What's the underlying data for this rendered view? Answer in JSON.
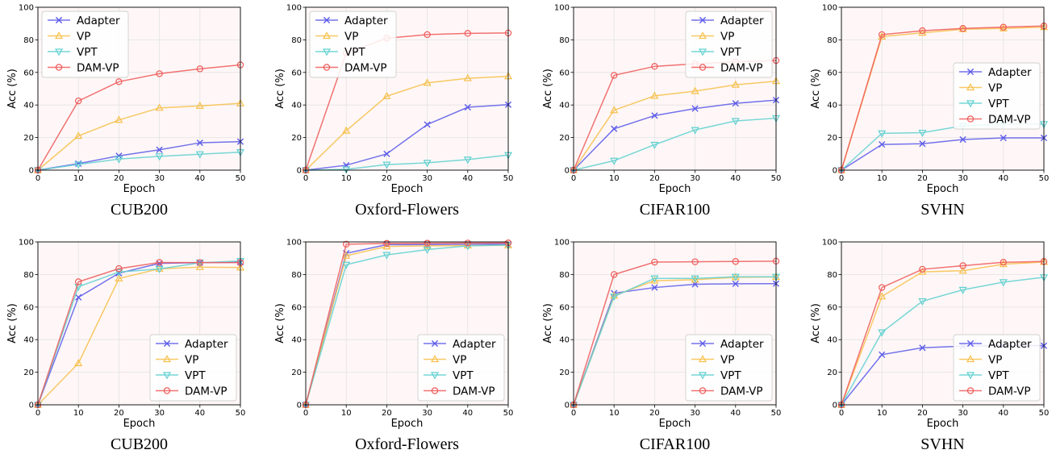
{
  "figure": {
    "series_colors": {
      "Adapter": "#5b5bea",
      "VP": "#f7c04a",
      "VPT": "#5fd0d0",
      "DAM-VP": "#ef5a5a"
    },
    "series_markers": {
      "Adapter": "x-marker",
      "VP": "triangle-up-marker",
      "VPT": "triangle-down-marker",
      "DAM-VP": "circle-marker"
    },
    "plot_background": "#fff7f7"
  },
  "chart_data": [
    {
      "type": "line",
      "caption": "CUB200",
      "xlabel": "Epoch",
      "ylabel": "Acc (%)",
      "xlim": [
        0,
        50
      ],
      "ylim": [
        0,
        100
      ],
      "grid": true,
      "legend": "top-left",
      "x": [
        0,
        10,
        20,
        30,
        40,
        50
      ],
      "xticks": [
        "0",
        "10",
        "20",
        "30",
        "40",
        "50"
      ],
      "yticks": [
        "0",
        "20",
        "40",
        "60",
        "80",
        "100"
      ],
      "series": [
        {
          "name": "Adapter",
          "values": [
            0,
            4,
            8.8,
            12.5,
            16.8,
            17.5
          ]
        },
        {
          "name": "VP",
          "values": [
            0,
            21,
            30.8,
            38.2,
            39.4,
            41
          ]
        },
        {
          "name": "VPT",
          "values": [
            0,
            3.5,
            6.8,
            8.5,
            9.8,
            11
          ]
        },
        {
          "name": "DAM-VP",
          "values": [
            0,
            42.5,
            54.3,
            59.2,
            62.2,
            64.6
          ]
        }
      ]
    },
    {
      "type": "line",
      "caption": "Oxford-Flowers",
      "xlabel": "Epoch",
      "ylabel": "Acc (%)",
      "xlim": [
        0,
        50
      ],
      "ylim": [
        0,
        100
      ],
      "grid": true,
      "legend": "top-left",
      "x": [
        0,
        10,
        20,
        30,
        40,
        50
      ],
      "xticks": [
        "0",
        "10",
        "20",
        "30",
        "40",
        "50"
      ],
      "yticks": [
        "0",
        "20",
        "40",
        "60",
        "80",
        "100"
      ],
      "series": [
        {
          "name": "Adapter",
          "values": [
            0,
            3,
            10,
            28,
            38.6,
            40.2
          ]
        },
        {
          "name": "VP",
          "values": [
            0,
            24.2,
            45.4,
            53.6,
            56.4,
            57.6
          ]
        },
        {
          "name": "VPT",
          "values": [
            0,
            0.5,
            3.4,
            4.5,
            6.5,
            9.3
          ]
        },
        {
          "name": "DAM-VP",
          "values": [
            0,
            72,
            81,
            83.2,
            84,
            84.2
          ]
        }
      ]
    },
    {
      "type": "line",
      "caption": "CIFAR100",
      "xlabel": "Epoch",
      "ylabel": "Acc (%)",
      "xlim": [
        0,
        50
      ],
      "ylim": [
        0,
        100
      ],
      "grid": true,
      "legend": "top-right",
      "x": [
        0,
        10,
        20,
        30,
        40,
        50
      ],
      "xticks": [
        "0",
        "10",
        "20",
        "30",
        "40",
        "50"
      ],
      "yticks": [
        "0",
        "20",
        "40",
        "60",
        "80",
        "100"
      ],
      "series": [
        {
          "name": "Adapter",
          "values": [
            0,
            25.4,
            33.5,
            37.8,
            41,
            43
          ]
        },
        {
          "name": "VP",
          "values": [
            0,
            36.8,
            45.6,
            48.5,
            52.4,
            54.6
          ]
        },
        {
          "name": "VPT",
          "values": [
            0,
            5.8,
            15.6,
            24.7,
            30.2,
            31.9
          ]
        },
        {
          "name": "DAM-VP",
          "values": [
            0,
            58.2,
            63.7,
            65.3,
            66.5,
            67.3
          ]
        }
      ]
    },
    {
      "type": "line",
      "caption": "SVHN",
      "xlabel": "Epoch",
      "ylabel": "Acc (%)",
      "xlim": [
        0,
        50
      ],
      "ylim": [
        0,
        100
      ],
      "grid": true,
      "legend": "center-right",
      "x": [
        0,
        10,
        20,
        30,
        40,
        50
      ],
      "xticks": [
        "0",
        "10",
        "20",
        "30",
        "40",
        "50"
      ],
      "yticks": [
        "0",
        "20",
        "40",
        "60",
        "80",
        "100"
      ],
      "series": [
        {
          "name": "Adapter",
          "values": [
            0,
            15.8,
            16.2,
            18.8,
            19.8,
            19.8
          ]
        },
        {
          "name": "VP",
          "values": [
            0,
            82,
            84.3,
            86.5,
            87,
            87.8
          ]
        },
        {
          "name": "VPT",
          "values": [
            0,
            22.6,
            23,
            27.2,
            28.2,
            28.3
          ]
        },
        {
          "name": "DAM-VP",
          "values": [
            0,
            83.2,
            85.6,
            87,
            87.8,
            88.5
          ]
        }
      ]
    },
    {
      "type": "line",
      "caption": "CUB200",
      "xlabel": "Epoch",
      "ylabel": "Acc (%)",
      "xlim": [
        0,
        50
      ],
      "ylim": [
        0,
        100
      ],
      "grid": true,
      "legend": "bottom-right",
      "x": [
        0,
        10,
        20,
        30,
        40,
        50
      ],
      "xticks": [
        "0",
        "10",
        "20",
        "30",
        "40",
        "50"
      ],
      "yticks": [
        "0",
        "20",
        "40",
        "60",
        "80",
        "100"
      ],
      "series": [
        {
          "name": "Adapter",
          "values": [
            0,
            66,
            80.8,
            86.8,
            87.3,
            87.5
          ]
        },
        {
          "name": "VP",
          "values": [
            0,
            25.5,
            77.5,
            83.5,
            84.5,
            84.3
          ]
        },
        {
          "name": "VPT",
          "values": [
            0,
            72.5,
            81.5,
            83.4,
            87.2,
            88.3
          ]
        },
        {
          "name": "DAM-VP",
          "values": [
            0,
            75.5,
            83.6,
            87.4,
            87.3,
            87.3
          ]
        }
      ]
    },
    {
      "type": "line",
      "caption": "Oxford-Flowers",
      "xlabel": "Epoch",
      "ylabel": "Acc (%)",
      "xlim": [
        0,
        50
      ],
      "ylim": [
        0,
        100
      ],
      "grid": true,
      "legend": "bottom-right",
      "x": [
        0,
        10,
        20,
        30,
        40,
        50
      ],
      "xticks": [
        "0",
        "10",
        "20",
        "30",
        "40",
        "50"
      ],
      "yticks": [
        "0",
        "20",
        "40",
        "60",
        "80",
        "100"
      ],
      "series": [
        {
          "name": "Adapter",
          "values": [
            0,
            93,
            98.3,
            98.4,
            98.6,
            98.7
          ]
        },
        {
          "name": "VP",
          "values": [
            0,
            91.5,
            97.2,
            97.6,
            97.8,
            97.9
          ]
        },
        {
          "name": "VPT",
          "values": [
            0,
            86,
            92,
            95.3,
            97.6,
            98.1
          ]
        },
        {
          "name": "DAM-VP",
          "values": [
            0,
            98.6,
            99.1,
            99.2,
            99.3,
            99.4
          ]
        }
      ]
    },
    {
      "type": "line",
      "caption": "CIFAR100",
      "xlabel": "Epoch",
      "ylabel": "Acc (%)",
      "xlim": [
        0,
        50
      ],
      "ylim": [
        0,
        100
      ],
      "grid": true,
      "legend": "bottom-right",
      "x": [
        0,
        10,
        20,
        30,
        40,
        50
      ],
      "xticks": [
        "0",
        "10",
        "20",
        "30",
        "40",
        "50"
      ],
      "yticks": [
        "0",
        "20",
        "40",
        "60",
        "80",
        "100"
      ],
      "series": [
        {
          "name": "Adapter",
          "values": [
            0,
            68.5,
            72,
            74,
            74.3,
            74.4
          ]
        },
        {
          "name": "VP",
          "values": [
            0,
            67,
            76.2,
            76.8,
            78.3,
            78.5
          ]
        },
        {
          "name": "VPT",
          "values": [
            0,
            66.5,
            77.6,
            77.6,
            78.6,
            78.6
          ]
        },
        {
          "name": "DAM-VP",
          "values": [
            0,
            80,
            87.6,
            87.8,
            88,
            88.2
          ]
        }
      ]
    },
    {
      "type": "line",
      "caption": "SVHN",
      "xlabel": "Epoch",
      "ylabel": "Acc (%)",
      "xlim": [
        0,
        50
      ],
      "ylim": [
        0,
        100
      ],
      "grid": true,
      "legend": "bottom-right",
      "x": [
        0,
        10,
        20,
        30,
        40,
        50
      ],
      "xticks": [
        "0",
        "10",
        "20",
        "30",
        "40",
        "50"
      ],
      "yticks": [
        "0",
        "20",
        "40",
        "60",
        "80",
        "100"
      ],
      "series": [
        {
          "name": "Adapter",
          "values": [
            0,
            30.8,
            35,
            36,
            36.3,
            36.3
          ]
        },
        {
          "name": "VP",
          "values": [
            0,
            66.5,
            81.6,
            82.3,
            86.3,
            87.7
          ]
        },
        {
          "name": "VPT",
          "values": [
            0,
            44.5,
            63.6,
            70.6,
            75.3,
            78.3
          ]
        },
        {
          "name": "DAM-VP",
          "values": [
            0,
            72,
            83.2,
            85.4,
            87.5,
            88
          ]
        }
      ]
    }
  ]
}
